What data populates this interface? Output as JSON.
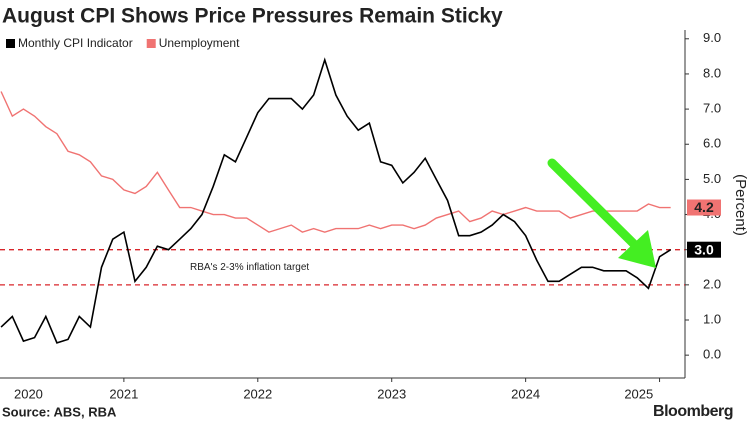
{
  "chart_data": {
    "type": "line",
    "title": "August CPI Shows Price Pressures Remain Sticky",
    "y_label": "(Percent)",
    "source": "Source: ABS, RBA",
    "brand": "Bloomberg",
    "annotation": "RBA's 2-3% inflation target",
    "reference_lines": [
      {
        "value": 3,
        "color": "#d9262b"
      },
      {
        "value": 2,
        "color": "#d9262b"
      }
    ],
    "x": [
      2020.583,
      2020.667,
      2020.75,
      2020.833,
      2020.917,
      2021,
      2021.083,
      2021.167,
      2021.25,
      2021.333,
      2021.417,
      2021.5,
      2021.583,
      2021.667,
      2021.75,
      2021.833,
      2021.917,
      2022,
      2022.083,
      2022.167,
      2022.25,
      2022.333,
      2022.417,
      2022.5,
      2022.583,
      2022.667,
      2022.75,
      2022.833,
      2022.917,
      2023,
      2023.083,
      2023.167,
      2023.25,
      2023.333,
      2023.417,
      2023.5,
      2023.583,
      2023.667,
      2023.75,
      2023.833,
      2023.917,
      2024,
      2024.083,
      2024.167,
      2024.25,
      2024.333,
      2024.417,
      2024.5,
      2024.583,
      2024.667,
      2024.75,
      2024.833,
      2024.917,
      2025,
      2025.083,
      2025.167,
      2025.25,
      2025.333,
      2025.417,
      2025.5,
      2025.583
    ],
    "xlim": [
      2020.575,
      2025.69
    ],
    "xticks": [
      {
        "value": 2020.5,
        "label": "2020"
      },
      {
        "value": 2021.5,
        "label": "2021"
      },
      {
        "value": 2022.5,
        "label": "2022"
      },
      {
        "value": 2023.5,
        "label": "2023"
      },
      {
        "value": 2024.5,
        "label": "2024"
      },
      {
        "value": 2025.5,
        "label": "2025"
      }
    ],
    "ylim": [
      -0.65,
      9.25
    ],
    "yticks": [
      {
        "value": 0,
        "label": "0.0"
      },
      {
        "value": 1,
        "label": "1.0"
      },
      {
        "value": 2,
        "label": "2.0"
      },
      {
        "value": 3,
        "label": "3.0"
      },
      {
        "value": 4,
        "label": "4.0"
      },
      {
        "value": 5,
        "label": "5.0"
      },
      {
        "value": 6,
        "label": "6.0"
      },
      {
        "value": 7,
        "label": "7.0"
      },
      {
        "value": 8,
        "label": "8.0"
      },
      {
        "value": 9,
        "label": "9.0"
      }
    ],
    "series": [
      {
        "name": "Monthly CPI Indicator",
        "color": "#000000",
        "values": [
          0.8,
          1.1,
          0.4,
          0.5,
          1.1,
          0.35,
          0.45,
          1.1,
          0.8,
          2.5,
          3.3,
          3.5,
          2.1,
          2.5,
          3.1,
          3.0,
          3.3,
          3.6,
          4.0,
          4.8,
          5.7,
          5.5,
          6.2,
          6.9,
          7.3,
          7.3,
          7.3,
          7.0,
          7.4,
          8.4,
          7.4,
          6.8,
          6.4,
          6.6,
          5.5,
          5.4,
          4.9,
          5.2,
          5.6,
          5.0,
          4.4,
          3.4,
          3.4,
          3.5,
          3.7,
          4.0,
          3.8,
          3.4,
          2.7,
          2.1,
          2.1,
          2.3,
          2.5,
          2.5,
          2.4,
          2.4,
          2.4,
          2.2,
          1.9,
          2.8,
          3.0
        ],
        "value_labels": [
          null,
          null,
          null,
          null,
          null,
          null,
          null,
          null,
          null,
          null,
          null,
          null,
          null,
          null,
          null,
          null,
          null,
          null,
          null,
          null,
          null,
          null,
          null,
          null,
          null,
          null,
          null,
          null,
          null,
          null,
          null,
          null,
          null,
          null,
          null,
          null,
          null,
          null,
          null,
          null,
          null,
          null,
          null,
          null,
          null,
          null,
          null,
          null,
          null,
          null,
          null,
          null,
          null,
          null,
          null,
          null,
          null,
          null,
          null,
          null,
          "3.0"
        ]
      },
      {
        "name": "Unemployment",
        "color": "#f07372",
        "values": [
          7.5,
          6.8,
          7.0,
          6.8,
          6.5,
          6.3,
          5.8,
          5.7,
          5.5,
          5.1,
          5.0,
          4.7,
          4.6,
          4.8,
          5.2,
          4.7,
          4.2,
          4.2,
          4.1,
          4.0,
          4.0,
          3.9,
          3.9,
          3.7,
          3.5,
          3.6,
          3.7,
          3.5,
          3.6,
          3.5,
          3.6,
          3.6,
          3.6,
          3.7,
          3.6,
          3.7,
          3.7,
          3.6,
          3.7,
          3.9,
          4.0,
          4.1,
          3.8,
          3.9,
          4.1,
          4.0,
          4.1,
          4.2,
          4.1,
          4.1,
          4.1,
          3.9,
          4.0,
          4.1,
          4.1,
          4.1,
          4.1,
          4.1,
          4.3,
          4.2,
          4.2
        ],
        "value_labels": [
          null,
          null,
          null,
          null,
          null,
          null,
          null,
          null,
          null,
          null,
          null,
          null,
          null,
          null,
          null,
          null,
          null,
          null,
          null,
          null,
          null,
          null,
          null,
          null,
          null,
          null,
          null,
          null,
          null,
          null,
          null,
          null,
          null,
          null,
          null,
          null,
          null,
          null,
          null,
          null,
          null,
          null,
          null,
          null,
          null,
          null,
          null,
          null,
          null,
          null,
          null,
          null,
          null,
          null,
          null,
          null,
          null,
          null,
          null,
          null,
          "4.2"
        ]
      }
    ]
  }
}
